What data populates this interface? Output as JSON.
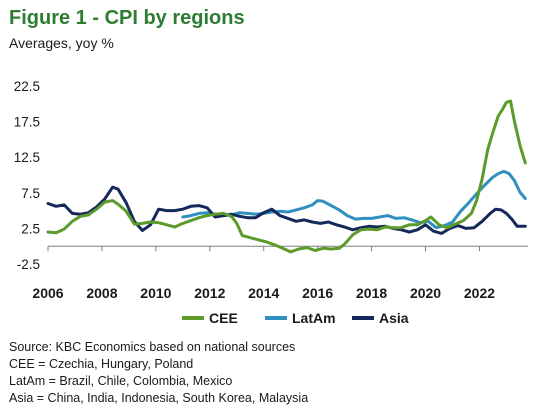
{
  "title": "Figure 1 - CPI by regions",
  "subtitle": "Averages, yoy %",
  "notes": [
    "Source: KBC Economics based on national sources",
    "CEE = Czechia, Hungary, Poland",
    "LatAm = Brazil, Chile, Colombia, Mexico",
    "Asia = China, India, Indonesia, South Korea, Malaysia"
  ],
  "chart_data": {
    "type": "line",
    "title": "Figure 1 - CPI by regions",
    "subtitle": "Averages, yoy %",
    "xlim": [
      2006,
      2023.8
    ],
    "ylim": [
      -2.5,
      22.5
    ],
    "yticks": [
      -2.5,
      2.5,
      7.5,
      12.5,
      17.5,
      22.5
    ],
    "ytick_labels": [
      "-2.5",
      "2.5",
      "7.5",
      "12.5",
      "17.5",
      "22.5"
    ],
    "xticks": [
      2006,
      2008,
      2010,
      2012,
      2014,
      2016,
      2018,
      2020,
      2022
    ],
    "xtick_labels": [
      "2006",
      "2008",
      "2010",
      "2012",
      "2014",
      "2016",
      "2018",
      "2020",
      "2022"
    ],
    "grid": "none",
    "legend_position": "bottom",
    "series": [
      {
        "name": "CEE",
        "color": "#5b9a2b",
        "x": [
          2006.0,
          2006.3,
          2006.6,
          2006.9,
          2007.2,
          2007.5,
          2007.8,
          2008.1,
          2008.4,
          2008.6,
          2008.9,
          2009.2,
          2009.5,
          2009.8,
          2010.1,
          2010.4,
          2010.7,
          2011.0,
          2011.3,
          2011.6,
          2011.9,
          2012.2,
          2012.5,
          2012.8,
          2013.0,
          2013.2,
          2013.5,
          2013.8,
          2014.1,
          2014.4,
          2014.7,
          2015.0,
          2015.3,
          2015.6,
          2015.9,
          2016.2,
          2016.5,
          2016.8,
          2017.0,
          2017.3,
          2017.6,
          2017.9,
          2018.2,
          2018.5,
          2018.8,
          2019.1,
          2019.4,
          2019.7,
          2020.0,
          2020.2,
          2020.5,
          2020.8,
          2021.1,
          2021.4,
          2021.7,
          2021.9,
          2022.1,
          2022.3,
          2022.5,
          2022.7,
          2022.85,
          2023.0,
          2023.15,
          2023.3,
          2023.5,
          2023.7
        ],
        "y": [
          2.0,
          1.9,
          2.4,
          3.5,
          4.2,
          4.4,
          5.2,
          6.2,
          6.4,
          5.9,
          4.9,
          3.1,
          3.2,
          3.4,
          3.3,
          3.0,
          2.7,
          3.2,
          3.6,
          4.0,
          4.3,
          4.5,
          4.6,
          4.2,
          3.2,
          1.5,
          1.2,
          0.9,
          0.6,
          0.2,
          -0.3,
          -0.8,
          -0.4,
          -0.2,
          -0.6,
          -0.3,
          -0.4,
          -0.3,
          0.3,
          1.6,
          2.3,
          2.4,
          2.3,
          2.7,
          2.6,
          2.6,
          3.0,
          3.0,
          3.6,
          4.1,
          3.0,
          2.6,
          3.1,
          3.6,
          4.6,
          6.5,
          9.5,
          13.5,
          16.0,
          18.3,
          19.2,
          20.2,
          20.4,
          17.5,
          14.2,
          11.7
        ]
      },
      {
        "name": "LatAm",
        "color": "#2f8fbf",
        "x": [
          2011.0,
          2011.3,
          2011.6,
          2011.9,
          2012.2,
          2012.5,
          2012.8,
          2013.1,
          2013.4,
          2013.7,
          2014.0,
          2014.3,
          2014.6,
          2014.9,
          2015.2,
          2015.5,
          2015.8,
          2016.0,
          2016.2,
          2016.5,
          2016.8,
          2017.1,
          2017.4,
          2017.7,
          2018.0,
          2018.3,
          2018.6,
          2018.9,
          2019.2,
          2019.5,
          2019.8,
          2020.1,
          2020.4,
          2020.7,
          2021.0,
          2021.3,
          2021.6,
          2021.9,
          2022.2,
          2022.5,
          2022.7,
          2022.9,
          2023.1,
          2023.3,
          2023.5,
          2023.7
        ],
        "y": [
          4.1,
          4.3,
          4.6,
          4.7,
          4.5,
          4.3,
          4.4,
          4.7,
          4.6,
          4.5,
          4.6,
          4.8,
          4.9,
          4.8,
          5.1,
          5.4,
          5.8,
          6.4,
          6.3,
          5.7,
          5.1,
          4.3,
          3.8,
          3.9,
          3.9,
          4.1,
          4.3,
          3.9,
          4.0,
          3.7,
          3.3,
          3.5,
          2.6,
          2.9,
          3.4,
          4.9,
          6.1,
          7.4,
          8.6,
          9.7,
          10.2,
          10.5,
          10.2,
          9.2,
          7.6,
          6.7
        ]
      },
      {
        "name": "Asia",
        "color": "#14295a",
        "x": [
          2006.0,
          2006.3,
          2006.6,
          2006.9,
          2007.2,
          2007.5,
          2007.8,
          2008.1,
          2008.4,
          2008.6,
          2008.9,
          2009.2,
          2009.5,
          2009.8,
          2010.1,
          2010.4,
          2010.7,
          2011.0,
          2011.3,
          2011.6,
          2011.9,
          2012.2,
          2012.5,
          2012.8,
          2013.1,
          2013.4,
          2013.7,
          2014.0,
          2014.3,
          2014.6,
          2014.9,
          2015.2,
          2015.5,
          2015.8,
          2016.1,
          2016.4,
          2016.7,
          2017.0,
          2017.3,
          2017.6,
          2017.9,
          2018.2,
          2018.5,
          2018.8,
          2019.1,
          2019.4,
          2019.7,
          2020.0,
          2020.3,
          2020.6,
          2020.9,
          2021.2,
          2021.5,
          2021.8,
          2022.1,
          2022.4,
          2022.6,
          2022.8,
          2023.0,
          2023.2,
          2023.4,
          2023.7
        ],
        "y": [
          6.0,
          5.6,
          5.8,
          4.6,
          4.5,
          4.7,
          5.5,
          6.6,
          8.3,
          8.0,
          6.1,
          3.5,
          2.2,
          3.0,
          5.2,
          5.0,
          5.0,
          5.2,
          5.6,
          5.7,
          5.4,
          4.1,
          4.3,
          4.5,
          4.2,
          4.0,
          4.0,
          4.7,
          5.2,
          4.3,
          3.9,
          3.5,
          3.7,
          3.4,
          3.2,
          3.4,
          3.0,
          2.7,
          2.3,
          2.6,
          2.8,
          2.7,
          2.8,
          2.5,
          2.3,
          2.0,
          2.3,
          3.0,
          2.1,
          1.8,
          2.5,
          2.9,
          2.5,
          2.6,
          3.5,
          4.6,
          5.2,
          5.1,
          4.6,
          3.8,
          2.8,
          2.8
        ]
      }
    ]
  }
}
